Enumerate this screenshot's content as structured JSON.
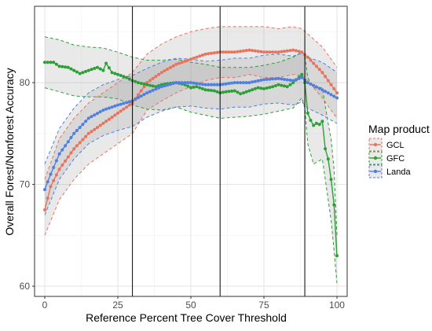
{
  "chart_data": {
    "type": "line",
    "title": "",
    "xlabel": "Reference Percent Tree Cover Threshold",
    "ylabel": "Overall Forest/Nonforest Accuracy",
    "xlim": [
      -3.5,
      103.5
    ],
    "ylim": [
      59,
      87.5
    ],
    "x_ticks": [
      0,
      25,
      50,
      75,
      100
    ],
    "y_ticks": [
      60,
      70,
      80
    ],
    "grid": true,
    "vlines": [
      30,
      60,
      89
    ],
    "legend": {
      "title": "Map product",
      "position": "right",
      "entries": [
        "GCL",
        "GFC",
        "Landa"
      ]
    },
    "colors": {
      "GCL": "#E8735F",
      "GFC": "#2E9E36",
      "Landa": "#4F7FE0",
      "panel": "#ffffff",
      "grid_major": "#e3e3e3",
      "grid_minor": "#f1f1f1",
      "ribbon": "#9a9a9a",
      "vline": "#000000",
      "border": "#333333"
    },
    "series": [
      {
        "name": "GCL",
        "anchors": [
          [
            0,
            67.5
          ],
          [
            2,
            69.8
          ],
          [
            5,
            71.5
          ],
          [
            10,
            73.5
          ],
          [
            15,
            75
          ],
          [
            20,
            76
          ],
          [
            25,
            77
          ],
          [
            30,
            78
          ],
          [
            35,
            80
          ],
          [
            40,
            81
          ],
          [
            45,
            81.8
          ],
          [
            50,
            82.3
          ],
          [
            55,
            82.8
          ],
          [
            60,
            83
          ],
          [
            65,
            83
          ],
          [
            70,
            83.2
          ],
          [
            75,
            83
          ],
          [
            80,
            83
          ],
          [
            85,
            83.2
          ],
          [
            88,
            83
          ],
          [
            90,
            82.5
          ],
          [
            95,
            81
          ],
          [
            100,
            79
          ]
        ],
        "upper": [
          [
            0,
            70.5
          ],
          [
            5,
            74.5
          ],
          [
            10,
            76.5
          ],
          [
            15,
            78
          ],
          [
            20,
            79
          ],
          [
            25,
            80
          ],
          [
            30,
            81
          ],
          [
            35,
            82.8
          ],
          [
            40,
            83.8
          ],
          [
            45,
            84.5
          ],
          [
            50,
            85
          ],
          [
            55,
            85.3
          ],
          [
            60,
            85.5
          ],
          [
            65,
            85.5
          ],
          [
            70,
            85.5
          ],
          [
            75,
            85.5
          ],
          [
            80,
            85.3
          ],
          [
            85,
            85.5
          ],
          [
            88,
            85.3
          ],
          [
            90,
            84.8
          ],
          [
            95,
            83.5
          ],
          [
            100,
            81.5
          ]
        ],
        "lower": [
          [
            0,
            65
          ],
          [
            5,
            68.5
          ],
          [
            10,
            70.5
          ],
          [
            15,
            72
          ],
          [
            20,
            73
          ],
          [
            25,
            74
          ],
          [
            30,
            75
          ],
          [
            35,
            77.3
          ],
          [
            40,
            78.2
          ],
          [
            45,
            79
          ],
          [
            50,
            79.6
          ],
          [
            55,
            80.2
          ],
          [
            60,
            80.5
          ],
          [
            65,
            80.5
          ],
          [
            70,
            80.8
          ],
          [
            75,
            80.5
          ],
          [
            80,
            80.5
          ],
          [
            85,
            80.8
          ],
          [
            88,
            80.7
          ],
          [
            90,
            80.2
          ],
          [
            95,
            78.5
          ],
          [
            100,
            76.5
          ]
        ]
      },
      {
        "name": "GFC",
        "anchors": [
          [
            0,
            82
          ],
          [
            3,
            82
          ],
          [
            5,
            81.6
          ],
          [
            8,
            81.5
          ],
          [
            10,
            81.2
          ],
          [
            12,
            80.9
          ],
          [
            15,
            81.2
          ],
          [
            18,
            81.5
          ],
          [
            20,
            81.2
          ],
          [
            21,
            81.9
          ],
          [
            23,
            81
          ],
          [
            25,
            80.8
          ],
          [
            28,
            80.5
          ],
          [
            30,
            80.2
          ],
          [
            32,
            80
          ],
          [
            35,
            79.8
          ],
          [
            38,
            79.6
          ],
          [
            40,
            79.8
          ],
          [
            42,
            79.9
          ],
          [
            45,
            80
          ],
          [
            48,
            79.8
          ],
          [
            50,
            79.5
          ],
          [
            52,
            79.6
          ],
          [
            55,
            79.3
          ],
          [
            58,
            79.2
          ],
          [
            60,
            79
          ],
          [
            62,
            79.1
          ],
          [
            65,
            79.2
          ],
          [
            67,
            78.9
          ],
          [
            70,
            79.2
          ],
          [
            73,
            79.5
          ],
          [
            75,
            79.4
          ],
          [
            78,
            79.6
          ],
          [
            80,
            79.8
          ],
          [
            83,
            79.6
          ],
          [
            85,
            80
          ],
          [
            88,
            80.8
          ],
          [
            89,
            80
          ],
          [
            90,
            77
          ],
          [
            91,
            76.3
          ],
          [
            92,
            75.8
          ],
          [
            93,
            76
          ],
          [
            94,
            75.9
          ],
          [
            95,
            76.2
          ],
          [
            96,
            73.5
          ],
          [
            97,
            72.5
          ],
          [
            98,
            70.5
          ],
          [
            99,
            68
          ],
          [
            100,
            63
          ]
        ],
        "upper": [
          [
            0,
            84.5
          ],
          [
            5,
            84.2
          ],
          [
            10,
            83.7
          ],
          [
            15,
            83.5
          ],
          [
            20,
            83.4
          ],
          [
            25,
            83
          ],
          [
            30,
            82.5
          ],
          [
            35,
            82.2
          ],
          [
            40,
            82.2
          ],
          [
            45,
            82.3
          ],
          [
            50,
            82
          ],
          [
            55,
            81.8
          ],
          [
            60,
            81.5
          ],
          [
            65,
            81.5
          ],
          [
            70,
            81.5
          ],
          [
            75,
            81.7
          ],
          [
            80,
            82
          ],
          [
            85,
            82.5
          ],
          [
            88,
            83
          ],
          [
            89,
            82.8
          ],
          [
            90,
            80.5
          ],
          [
            92,
            79.5
          ],
          [
            95,
            79.5
          ],
          [
            97,
            76
          ],
          [
            98,
            74.5
          ],
          [
            99,
            71.5
          ],
          [
            100,
            65
          ]
        ],
        "lower": [
          [
            0,
            79.5
          ],
          [
            5,
            79.1
          ],
          [
            10,
            78.7
          ],
          [
            15,
            78.6
          ],
          [
            20,
            78.6
          ],
          [
            25,
            78.4
          ],
          [
            30,
            77.8
          ],
          [
            35,
            77.4
          ],
          [
            40,
            77.3
          ],
          [
            45,
            77.6
          ],
          [
            50,
            77.1
          ],
          [
            55,
            76.8
          ],
          [
            60,
            76.5
          ],
          [
            65,
            76.6
          ],
          [
            70,
            76.7
          ],
          [
            75,
            76.9
          ],
          [
            80,
            77.2
          ],
          [
            85,
            77.5
          ],
          [
            88,
            78.5
          ],
          [
            89,
            77.5
          ],
          [
            90,
            74
          ],
          [
            92,
            72
          ],
          [
            95,
            72.5
          ],
          [
            97,
            68.5
          ],
          [
            98,
            66.5
          ],
          [
            99,
            63.5
          ],
          [
            100,
            60.3
          ]
        ]
      },
      {
        "name": "Landa",
        "anchors": [
          [
            0,
            69.5
          ],
          [
            2,
            71
          ],
          [
            5,
            73
          ],
          [
            10,
            75
          ],
          [
            15,
            76.5
          ],
          [
            20,
            77.3
          ],
          [
            25,
            77.8
          ],
          [
            30,
            78.2
          ],
          [
            35,
            79
          ],
          [
            40,
            79.6
          ],
          [
            45,
            80
          ],
          [
            50,
            80
          ],
          [
            55,
            79.8
          ],
          [
            60,
            79.8
          ],
          [
            65,
            80
          ],
          [
            70,
            80
          ],
          [
            75,
            80.3
          ],
          [
            80,
            80.4
          ],
          [
            85,
            80.2
          ],
          [
            88,
            80.5
          ],
          [
            90,
            80
          ],
          [
            95,
            79.3
          ],
          [
            100,
            78.5
          ]
        ],
        "upper": [
          [
            0,
            72
          ],
          [
            5,
            75.5
          ],
          [
            10,
            77.5
          ],
          [
            15,
            79
          ],
          [
            20,
            79.8
          ],
          [
            25,
            80.3
          ],
          [
            30,
            80.7
          ],
          [
            35,
            81.4
          ],
          [
            40,
            82
          ],
          [
            45,
            82.4
          ],
          [
            50,
            82.3
          ],
          [
            55,
            82.1
          ],
          [
            60,
            82.2
          ],
          [
            65,
            82.4
          ],
          [
            70,
            82.4
          ],
          [
            75,
            82.7
          ],
          [
            80,
            82.8
          ],
          [
            85,
            82.6
          ],
          [
            88,
            82.9
          ],
          [
            90,
            82.5
          ],
          [
            95,
            82
          ],
          [
            100,
            81
          ]
        ],
        "lower": [
          [
            0,
            67
          ],
          [
            5,
            70.5
          ],
          [
            10,
            72.5
          ],
          [
            15,
            74
          ],
          [
            20,
            74.8
          ],
          [
            25,
            75.3
          ],
          [
            30,
            75.7
          ],
          [
            35,
            76.6
          ],
          [
            40,
            77.2
          ],
          [
            45,
            77.6
          ],
          [
            50,
            77.7
          ],
          [
            55,
            77.5
          ],
          [
            60,
            77.4
          ],
          [
            65,
            77.6
          ],
          [
            70,
            77.6
          ],
          [
            75,
            77.9
          ],
          [
            80,
            78
          ],
          [
            85,
            77.8
          ],
          [
            88,
            78.1
          ],
          [
            90,
            77.5
          ],
          [
            95,
            76.8
          ],
          [
            100,
            76
          ]
        ]
      }
    ]
  }
}
